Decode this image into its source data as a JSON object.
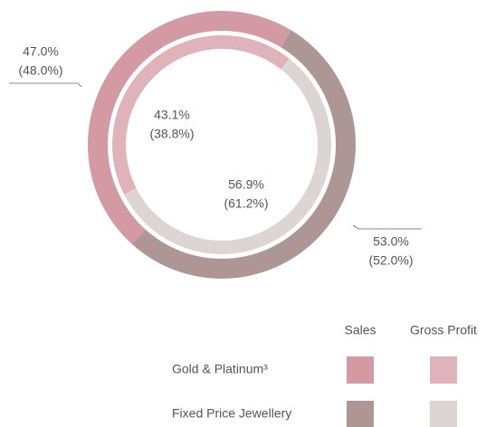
{
  "chart_data": {
    "type": "donut",
    "categories": [
      "Gold & Platinum³",
      "Fixed Price Jewellery"
    ],
    "series": [
      {
        "name": "Sales",
        "colors": [
          "#d49aa3",
          "#ad9693"
        ],
        "values": [
          47.0,
          53.0
        ],
        "value_labels": [
          "47.0%",
          "53.0%"
        ],
        "prior_values": [
          48.0,
          52.0
        ],
        "prior_labels": [
          "(48.0%)",
          "(52.0%)"
        ]
      },
      {
        "name": "Gross Profit",
        "colors": [
          "#dfb3b9",
          "#ddd4d4"
        ],
        "values": [
          43.1,
          56.9
        ],
        "value_labels": [
          "43.1%",
          "56.9%"
        ],
        "prior_values": [
          38.8,
          61.2
        ],
        "prior_labels": [
          "(38.8%)",
          "(61.2%)"
        ]
      }
    ]
  }
}
